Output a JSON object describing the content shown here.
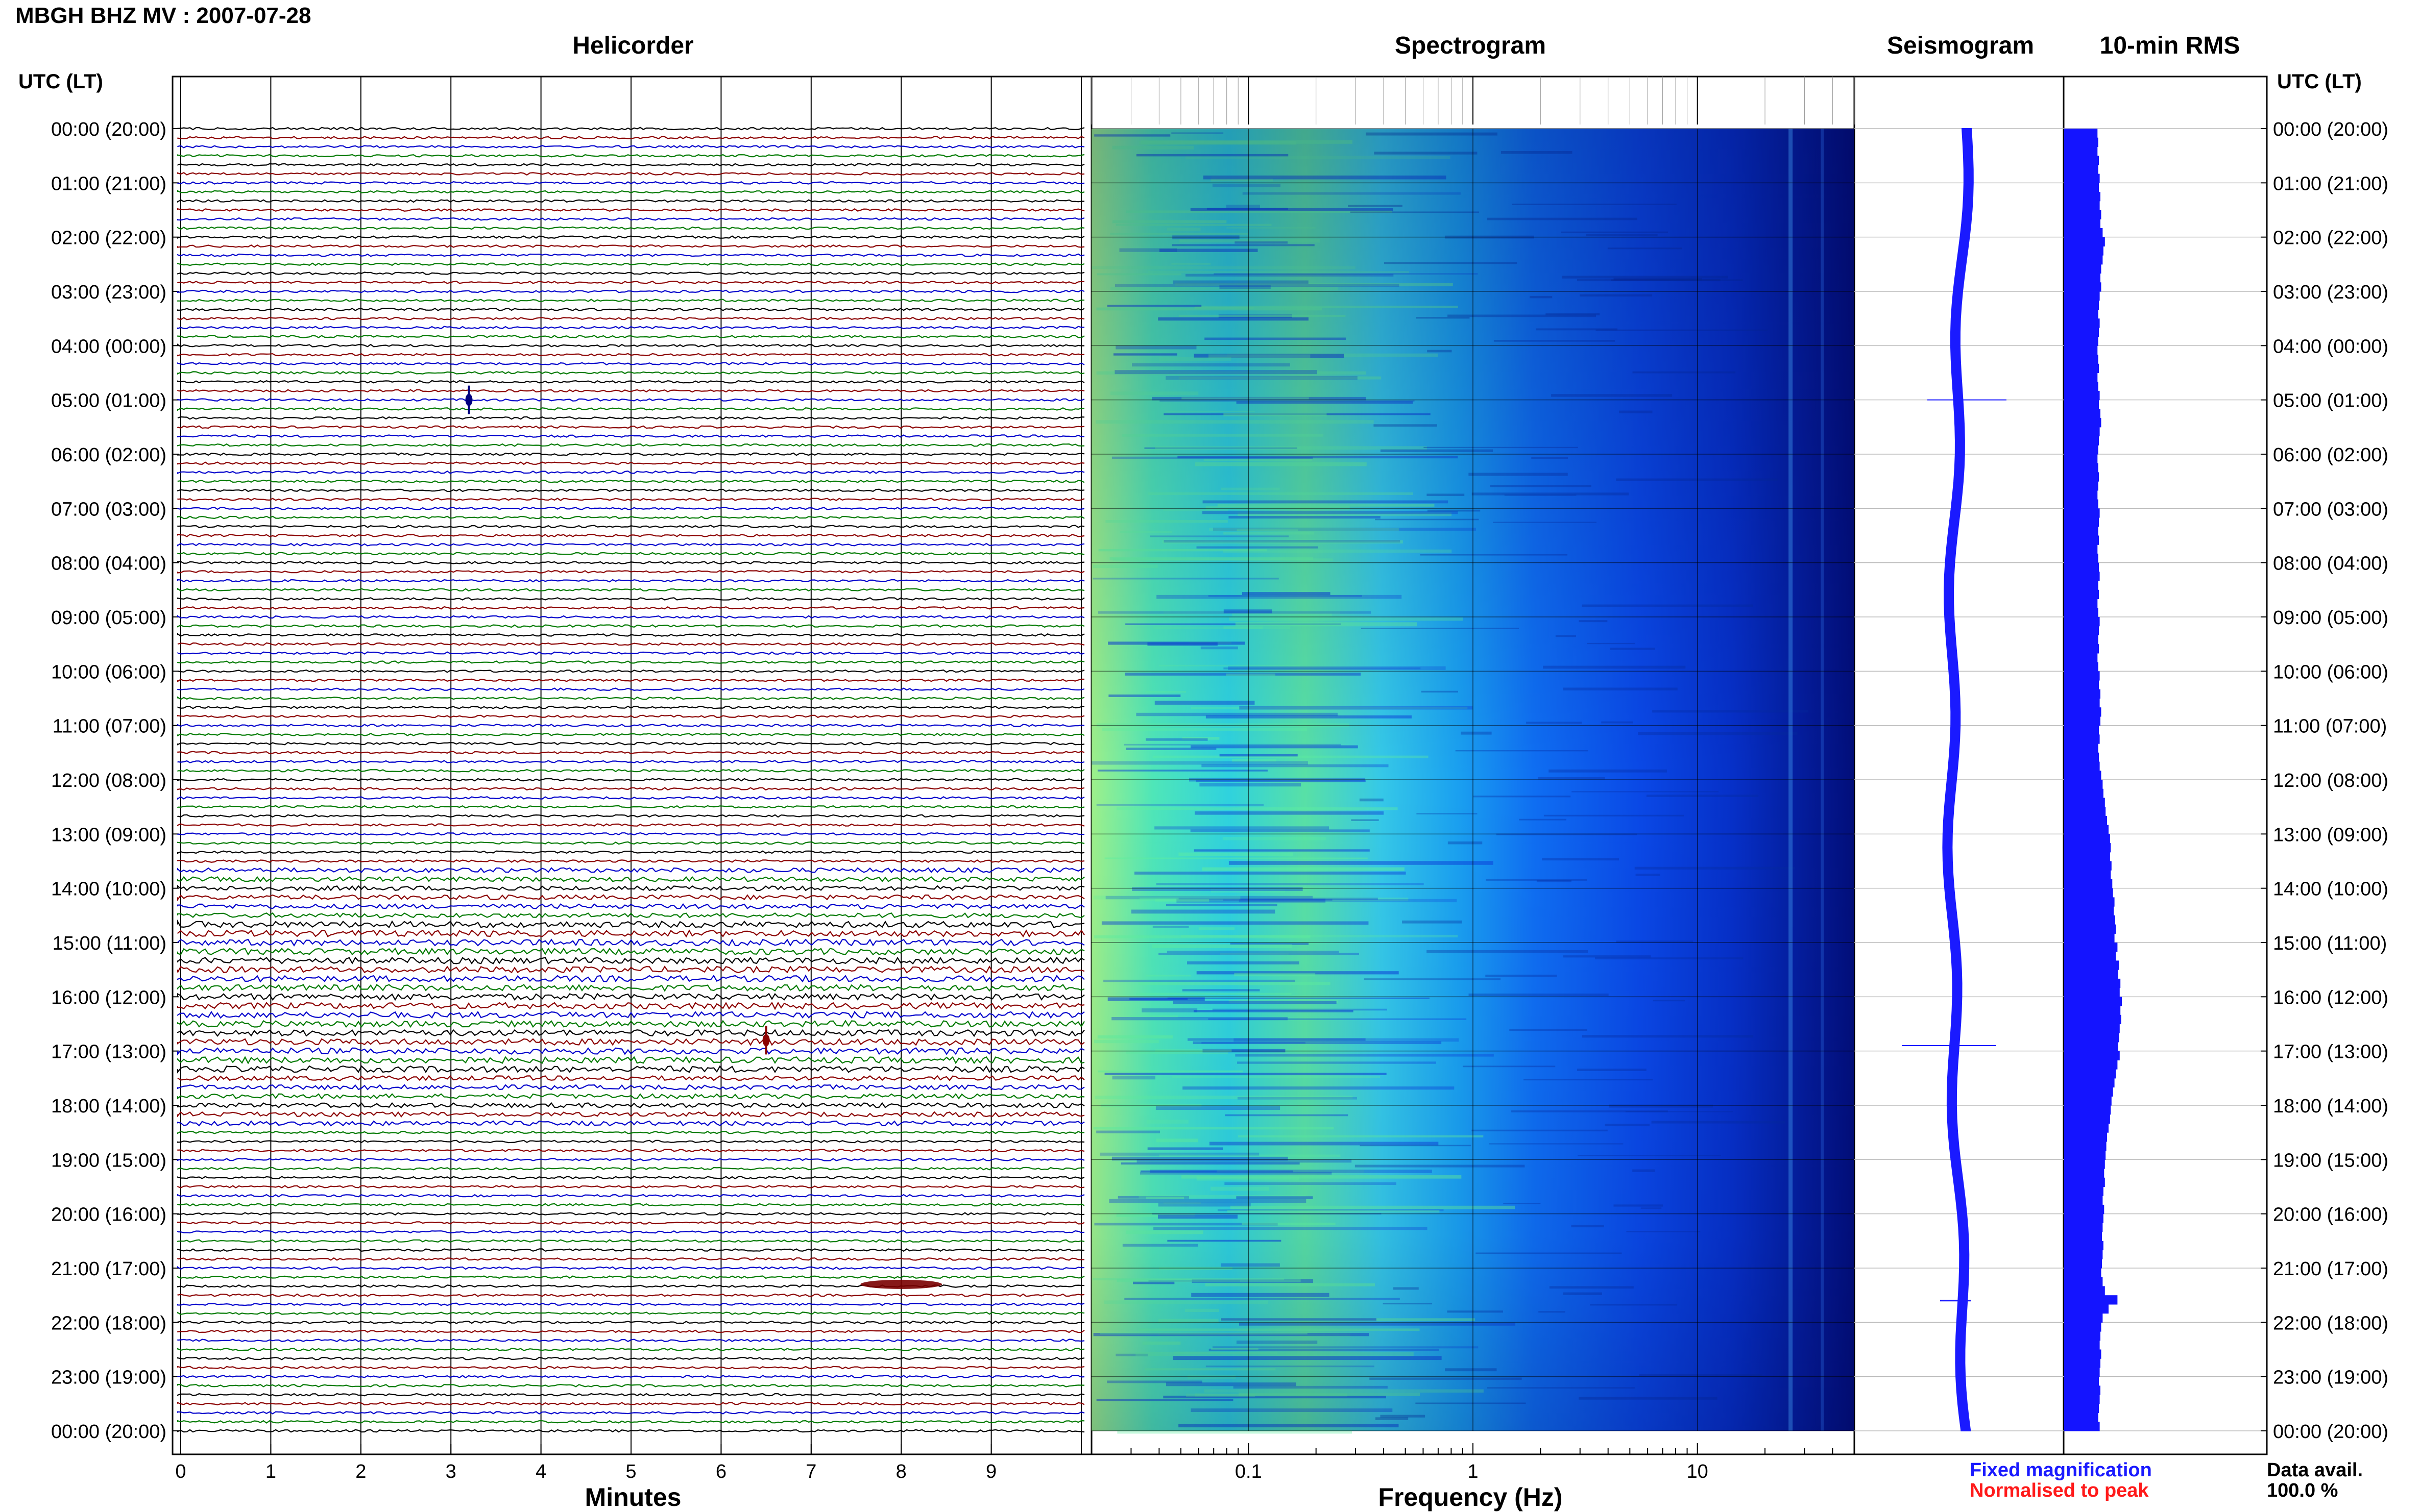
{
  "header": {
    "station_title": "MBGH BHZ MV : 2007-07-28"
  },
  "panels": {
    "helicorder": "Helicorder",
    "spectrogram": "Spectrogram",
    "seismogram": "Seismogram",
    "rms": "10-min RMS"
  },
  "axes": {
    "utc_left": "UTC (LT)",
    "utc_right": "UTC (LT)",
    "minutes_label": "Minutes",
    "frequency_label": "Frequency (Hz)"
  },
  "legend": {
    "fixed": "Fixed magnification",
    "normalised": "Normalised to peak",
    "fixed_color": "#1a1aff",
    "normalised_color": "#ff1a1a"
  },
  "availability": {
    "label": "Data avail.",
    "value": "100.0 %"
  },
  "chart_data": {
    "type": "helicorder",
    "time_labels": [
      "00:00 (20:00)",
      "01:00 (21:00)",
      "02:00 (22:00)",
      "03:00 (23:00)",
      "04:00 (00:00)",
      "05:00 (01:00)",
      "06:00 (02:00)",
      "07:00 (03:00)",
      "08:00 (04:00)",
      "09:00 (05:00)",
      "10:00 (06:00)",
      "11:00 (07:00)",
      "12:00 (08:00)",
      "13:00 (09:00)",
      "14:00 (10:00)",
      "15:00 (11:00)",
      "16:00 (12:00)",
      "17:00 (13:00)",
      "18:00 (14:00)",
      "19:00 (15:00)",
      "20:00 (16:00)",
      "21:00 (17:00)",
      "22:00 (18:00)",
      "23:00 (19:00)",
      "00:00 (20:00)"
    ],
    "minute_ticks": [
      "0",
      "1",
      "2",
      "3",
      "4",
      "5",
      "6",
      "7",
      "8",
      "9"
    ],
    "frequency_ticks": [
      "0.1",
      "1",
      "10"
    ],
    "frequency_range_hz": [
      0.02,
      50
    ],
    "trace_colors": [
      "#000000",
      "#8b0000",
      "#0000cc",
      "#007a00"
    ],
    "events": [
      {
        "hour": 5.0,
        "minute": 3.2,
        "note": "spike"
      },
      {
        "hour": 16.8,
        "minute": 6.5,
        "note": "spike"
      },
      {
        "hour": 21.3,
        "minute": 8.0,
        "note": "burst"
      }
    ],
    "rms_relative": [
      0.45,
      0.46,
      0.45,
      0.47,
      0.46,
      0.48,
      0.47,
      0.49,
      0.48,
      0.5,
      0.49,
      0.52,
      0.55,
      0.53,
      0.52,
      0.5,
      0.49,
      0.5,
      0.48,
      0.47,
      0.46,
      0.48,
      0.47,
      0.46,
      0.45,
      0.46,
      0.47,
      0.45,
      0.46,
      0.48,
      0.47,
      0.49,
      0.5,
      0.48,
      0.47,
      0.46,
      0.45,
      0.46,
      0.47,
      0.46,
      0.45,
      0.46,
      0.48,
      0.47,
      0.46,
      0.47,
      0.45,
      0.46,
      0.47,
      0.48,
      0.46,
      0.47,
      0.45,
      0.46,
      0.48,
      0.47,
      0.46,
      0.47,
      0.45,
      0.46,
      0.48,
      0.47,
      0.49,
      0.48,
      0.5,
      0.49,
      0.47,
      0.48,
      0.46,
      0.47,
      0.48,
      0.5,
      0.52,
      0.53,
      0.55,
      0.56,
      0.58,
      0.6,
      0.62,
      0.63,
      0.62,
      0.64,
      0.63,
      0.65,
      0.66,
      0.68,
      0.67,
      0.69,
      0.7,
      0.68,
      0.72,
      0.7,
      0.74,
      0.73,
      0.76,
      0.75,
      0.78,
      0.76,
      0.77,
      0.75,
      0.74,
      0.73,
      0.75,
      0.72,
      0.7,
      0.68,
      0.66,
      0.64,
      0.63,
      0.62,
      0.6,
      0.58,
      0.57,
      0.56,
      0.55,
      0.54,
      0.55,
      0.53,
      0.52,
      0.54,
      0.53,
      0.52,
      0.51,
      0.53,
      0.52,
      0.51,
      0.5,
      0.52,
      0.55,
      0.72,
      0.6,
      0.52,
      0.5,
      0.49,
      0.48,
      0.5,
      0.49,
      0.48,
      0.47,
      0.49,
      0.48,
      0.47,
      0.46,
      0.48
    ]
  }
}
